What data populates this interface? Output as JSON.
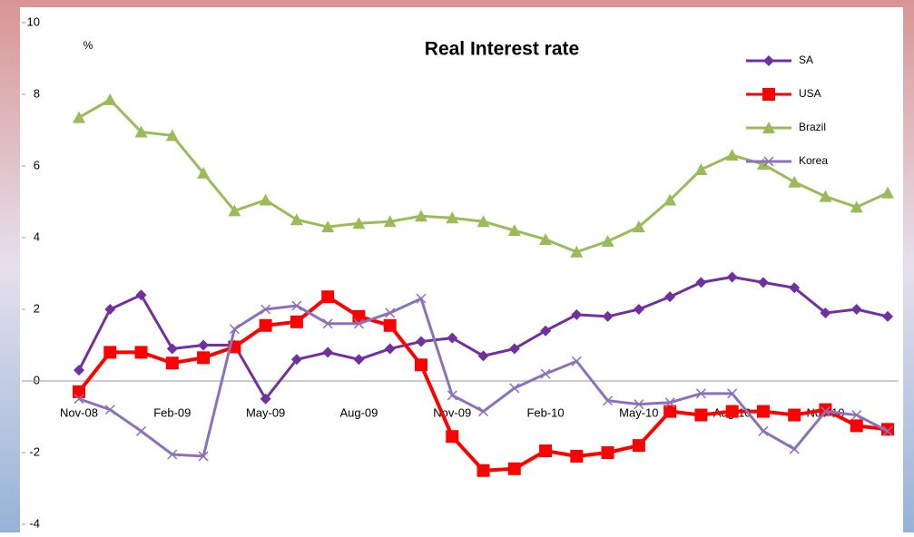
{
  "chart_data": {
    "type": "line",
    "title": "Real Interest rate",
    "y_label": "%",
    "categories": [
      "Nov-08",
      null,
      null,
      "Feb-09",
      null,
      null,
      "May-09",
      null,
      null,
      "Aug-09",
      null,
      null,
      "Nov-09",
      null,
      null,
      "Feb-10",
      null,
      null,
      "May-10",
      null,
      null,
      "Aug-10",
      null,
      null,
      "Nov-10",
      null,
      null
    ],
    "series": [
      {
        "name": "SA",
        "color": "#7030a0",
        "marker": "diamond",
        "values": [
          0.3,
          2.0,
          2.4,
          0.9,
          1.0,
          1.0,
          -0.5,
          0.6,
          0.8,
          0.6,
          0.9,
          1.1,
          1.2,
          0.7,
          0.9,
          1.4,
          1.85,
          1.8,
          2.0,
          2.35,
          2.75,
          2.9,
          2.75,
          2.6,
          1.9,
          2.0,
          1.8
        ]
      },
      {
        "name": "USA",
        "color": "#ff0000",
        "marker": "square",
        "values": [
          -0.3,
          0.8,
          0.8,
          0.5,
          0.65,
          0.95,
          1.55,
          1.65,
          2.35,
          1.8,
          1.55,
          0.45,
          -1.55,
          -2.5,
          -2.45,
          -1.95,
          -2.1,
          -2.0,
          -1.8,
          -0.85,
          -0.95,
          -0.85,
          -0.85,
          -0.95,
          -0.8,
          -1.25,
          -1.35
        ]
      },
      {
        "name": "Brazil",
        "color": "#9bbb59",
        "marker": "triangle",
        "values": [
          7.35,
          7.85,
          6.95,
          6.85,
          5.8,
          4.75,
          5.05,
          4.5,
          4.3,
          4.4,
          4.45,
          4.6,
          4.55,
          4.45,
          4.2,
          3.95,
          3.6,
          3.9,
          4.3,
          5.05,
          5.9,
          6.3,
          6.05,
          5.55,
          5.15,
          4.85,
          5.25
        ]
      },
      {
        "name": "Korea",
        "color": "#8b72b8",
        "marker": "x",
        "values": [
          -0.5,
          -0.8,
          -1.4,
          -2.05,
          -2.1,
          1.45,
          2.0,
          2.1,
          1.6,
          1.6,
          1.9,
          2.3,
          -0.4,
          -0.85,
          -0.2,
          0.2,
          0.55,
          -0.55,
          -0.65,
          -0.6,
          -0.35,
          -0.35,
          -1.4,
          -1.9,
          -0.85,
          -0.95,
          -1.4
        ]
      }
    ],
    "ylim": [
      -4,
      10
    ],
    "yticks": [
      -4,
      -2,
      0,
      2,
      4,
      6,
      8,
      10
    ]
  }
}
